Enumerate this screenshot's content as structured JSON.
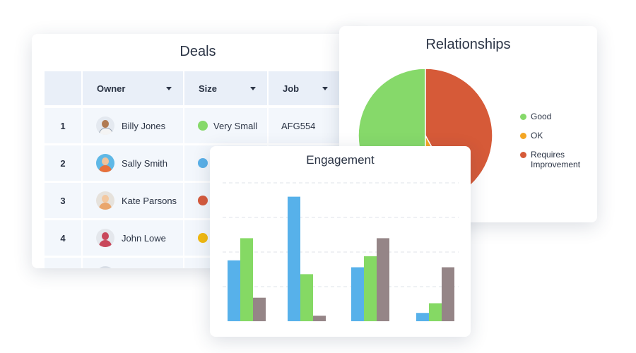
{
  "deals": {
    "title": "Deals",
    "columns": [
      {
        "label": ""
      },
      {
        "label": "Owner"
      },
      {
        "label": "Size"
      },
      {
        "label": "Job"
      }
    ],
    "rows": [
      {
        "num": "1",
        "owner": "Billy Jones",
        "size": "Very Small",
        "size_color": "#86d96a",
        "job": "AFG554"
      },
      {
        "num": "2",
        "owner": "Sally Smith",
        "size": "",
        "size_color": "#5ab0e8",
        "job": ""
      },
      {
        "num": "3",
        "owner": "Kate Parsons",
        "size": "",
        "size_color": "#d65a3c",
        "job": ""
      },
      {
        "num": "4",
        "owner": "John Lowe",
        "size": "",
        "size_color": "#f2b90f",
        "job": ""
      }
    ]
  },
  "relationships": {
    "title": "Relationships",
    "legend": [
      {
        "label": "Good",
        "color": "#86d96a"
      },
      {
        "label": "OK",
        "color": "#f4a623"
      },
      {
        "label": "Requires Improvement",
        "color": "#d65a38"
      }
    ]
  },
  "engagement": {
    "title": "Engagement"
  },
  "chart_data": [
    {
      "type": "pie",
      "title": "Relationships",
      "categories": [
        "Good",
        "OK",
        "Requires Improvement"
      ],
      "values": [
        50,
        8,
        42
      ],
      "colors": [
        "#86d96a",
        "#f4a623",
        "#d65a38"
      ],
      "legend": "right"
    },
    {
      "type": "bar",
      "title": "Engagement",
      "categories": [
        "",
        "",
        "",
        ""
      ],
      "series": [
        {
          "values": [
            44,
            90,
            39,
            6
          ],
          "color": "#57b1ea"
        },
        {
          "values": [
            60,
            34,
            47,
            13
          ],
          "color": "#85d964"
        },
        {
          "values": [
            17,
            4,
            60,
            39
          ],
          "color": "#958587"
        }
      ],
      "ylim": [
        0,
        100
      ],
      "grid": true
    }
  ]
}
